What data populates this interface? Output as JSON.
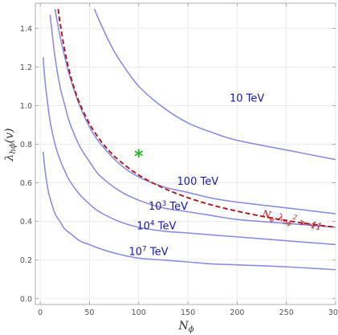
{
  "chart_data": {
    "type": "line",
    "xlabel_main": "N",
    "xlabel_sub": "ϕ",
    "ylabel_main": "λ",
    "ylabel_sub": "hϕ",
    "ylabel_suffix": "(v)",
    "xlim": [
      -5,
      300
    ],
    "ylim": [
      -0.03,
      1.53
    ],
    "xticks": [
      0,
      50,
      100,
      150,
      200,
      250,
      300
    ],
    "yticks": [
      0.0,
      0.2,
      0.4,
      0.6,
      0.8,
      1.0,
      1.2,
      1.4
    ],
    "ytick_labels": [
      "0.0",
      "0.2",
      "0.4",
      "0.6",
      "0.8",
      "1.0",
      "1.2",
      "1.4"
    ],
    "colors": {
      "contour": "#8c8ee0",
      "bound": "#b0151b",
      "star": "#2bb52b",
      "label": "#1a1aa6"
    },
    "series": [
      {
        "name": "10 TeV",
        "label_text": "10 TeV",
        "label_sup": "",
        "label_suffix": "",
        "label_at": [
          210,
          1.02
        ],
        "x": [
          55,
          60,
          70,
          80,
          100,
          125,
          150,
          175,
          200,
          250,
          300
        ],
        "y": [
          1.5,
          1.44,
          1.33,
          1.24,
          1.1,
          0.99,
          0.91,
          0.86,
          0.82,
          0.77,
          0.72
        ]
      },
      {
        "name": "100 TeV",
        "label_text": "100 TeV",
        "label_sup": "",
        "label_suffix": "",
        "label_at": [
          160,
          0.59
        ],
        "x": [
          15,
          20,
          25,
          30,
          40,
          50,
          60,
          80,
          100,
          125,
          150,
          175,
          200,
          250,
          300
        ],
        "y": [
          1.5,
          1.36,
          1.25,
          1.15,
          1.0,
          0.89,
          0.81,
          0.7,
          0.63,
          0.58,
          0.55,
          0.52,
          0.5,
          0.47,
          0.44
        ]
      },
      {
        "name": "10³ TeV",
        "label_text": "10",
        "label_sup": "3",
        "label_suffix": " TeV",
        "label_at": [
          130,
          0.46
        ],
        "x": [
          10,
          15,
          20,
          25,
          30,
          40,
          50,
          60,
          80,
          100,
          125,
          150,
          175,
          200,
          250,
          300
        ],
        "y": [
          1.47,
          1.25,
          1.1,
          1.0,
          0.91,
          0.79,
          0.71,
          0.64,
          0.56,
          0.51,
          0.47,
          0.45,
          0.43,
          0.41,
          0.39,
          0.37
        ]
      },
      {
        "name": "10⁴ TeV",
        "label_text": "10",
        "label_sup": "4",
        "label_suffix": " TeV",
        "label_at": [
          118,
          0.36
        ],
        "x": [
          3,
          5,
          10,
          15,
          20,
          25,
          30,
          40,
          50,
          60,
          80,
          100,
          125,
          150,
          175,
          200,
          250,
          300
        ],
        "y": [
          1.25,
          1.12,
          0.92,
          0.8,
          0.72,
          0.66,
          0.61,
          0.54,
          0.49,
          0.45,
          0.4,
          0.37,
          0.35,
          0.34,
          0.33,
          0.32,
          0.3,
          0.28
        ]
      },
      {
        "name": "10⁷ TeV",
        "label_text": "10",
        "label_sup": "7",
        "label_suffix": " TeV",
        "label_at": [
          110,
          0.225
        ],
        "x": [
          3,
          5,
          8,
          10,
          15,
          20,
          25,
          30,
          40,
          50,
          60,
          80,
          100,
          125,
          150,
          175,
          200,
          250,
          300
        ],
        "y": [
          0.76,
          0.66,
          0.56,
          0.52,
          0.44,
          0.4,
          0.36,
          0.34,
          0.3,
          0.28,
          0.26,
          0.23,
          0.21,
          0.2,
          0.19,
          0.18,
          0.175,
          0.165,
          0.15
        ]
      }
    ],
    "bound": {
      "name": "N_ϕ λ_hϕ² > 41",
      "label_main": "N",
      "label_sub1": "ϕ",
      "label_lambda": " λ",
      "label_sub2": "hϕ",
      "label_sup": "2",
      "label_tail": " > 41",
      "label_at": [
        225,
        0.425
      ],
      "x": [
        18.2,
        20,
        25,
        30,
        35,
        40,
        50,
        60,
        70,
        80,
        100,
        125,
        150,
        175,
        200,
        225,
        250,
        275,
        300
      ],
      "y": [
        1.5,
        1.432,
        1.281,
        1.169,
        1.082,
        1.012,
        0.906,
        0.827,
        0.765,
        0.716,
        0.64,
        0.573,
        0.523,
        0.484,
        0.453,
        0.427,
        0.405,
        0.386,
        0.37
      ]
    },
    "marker": {
      "symbol": "*",
      "x": 100,
      "y": 0.74
    }
  }
}
